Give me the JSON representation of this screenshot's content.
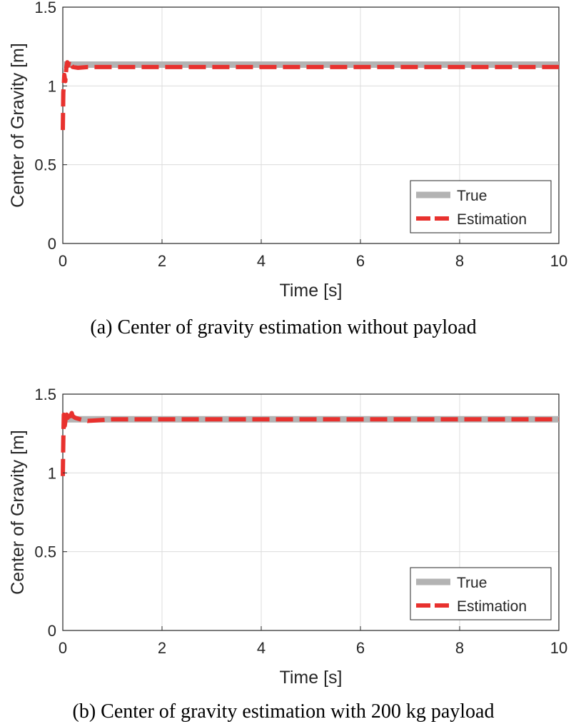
{
  "chart_data": [
    {
      "type": "line",
      "caption": "(a) Center of gravity estimation without payload",
      "xlabel": "Time [s]",
      "ylabel": "Center of Gravity [m]",
      "xlim": [
        0,
        10
      ],
      "ylim": [
        0,
        1.5
      ],
      "xticks": [
        "0",
        "2",
        "4",
        "6",
        "8",
        "10"
      ],
      "yticks": [
        "0",
        "0.5",
        "1",
        "1.5"
      ],
      "grid": true,
      "legend_position": "bottom-right",
      "series": [
        {
          "name": "True",
          "color": "#b3b3b3",
          "style": "solid",
          "x": [
            0,
            10
          ],
          "y": [
            1.135,
            1.135
          ]
        },
        {
          "name": "Estimation",
          "color": "#e8312e",
          "style": "dashed",
          "x": [
            0,
            0.01,
            0.02,
            0.03,
            0.05,
            0.07,
            0.09,
            0.11,
            0.13,
            0.16,
            0.2,
            0.3,
            0.5,
            1,
            10
          ],
          "y": [
            0.72,
            0.96,
            1.0,
            1.07,
            1.03,
            1.11,
            1.15,
            1.13,
            1.16,
            1.14,
            1.12,
            1.115,
            1.12,
            1.12,
            1.12
          ]
        }
      ]
    },
    {
      "type": "line",
      "caption": "(b) Center of gravity estimation with 200 kg payload",
      "xlabel": "Time [s]",
      "ylabel": "Center of Gravity [m]",
      "xlim": [
        0,
        10
      ],
      "ylim": [
        0,
        1.5
      ],
      "xticks": [
        "0",
        "2",
        "4",
        "6",
        "8",
        "10"
      ],
      "yticks": [
        "0",
        "0.5",
        "1",
        "1.5"
      ],
      "grid": true,
      "legend_position": "bottom-right",
      "series": [
        {
          "name": "True",
          "color": "#b3b3b3",
          "style": "solid",
          "x": [
            0,
            10
          ],
          "y": [
            1.34,
            1.34
          ]
        },
        {
          "name": "Estimation",
          "color": "#e8312e",
          "style": "dashed",
          "x": [
            0,
            0.01,
            0.02,
            0.04,
            0.06,
            0.08,
            0.1,
            0.12,
            0.15,
            0.18,
            0.2,
            0.25,
            0.35,
            0.5,
            1,
            10
          ],
          "y": [
            0.98,
            1.2,
            1.37,
            1.3,
            1.35,
            1.37,
            1.35,
            1.38,
            1.36,
            1.38,
            1.36,
            1.35,
            1.34,
            1.33,
            1.34,
            1.34
          ]
        }
      ]
    }
  ]
}
